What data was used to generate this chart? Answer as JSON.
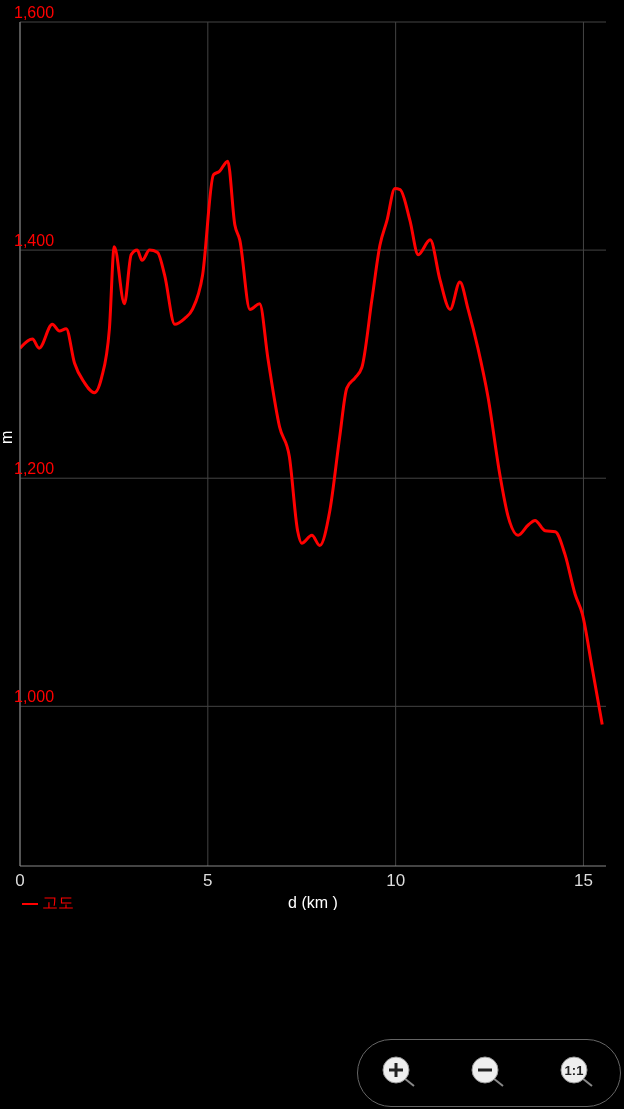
{
  "chart_data": {
    "type": "line",
    "xlabel": "d (km )",
    "ylabel": "m",
    "legend": "bottom left",
    "grid": true,
    "marker": "none",
    "line_style": "solid",
    "xlim": [
      0,
      15.6
    ],
    "xticks": [
      0,
      5,
      10,
      15
    ],
    "ylim": [
      860,
      1600
    ],
    "yticks": [
      {
        "value": 1000,
        "label": "1,000"
      },
      {
        "value": 1200,
        "label": "1,200"
      },
      {
        "value": 1400,
        "label": "1,400"
      },
      {
        "value": 1600,
        "label": "1,600"
      }
    ],
    "x": [
      0,
      0.33,
      0.51,
      0.86,
      1.05,
      1.23,
      1.45,
      1.71,
      1.98,
      2.17,
      2.38,
      2.51,
      2.78,
      2.96,
      3.12,
      3.25,
      3.45,
      3.66,
      3.85,
      4.12,
      4.38,
      4.59,
      4.86,
      5.15,
      5.31,
      5.53,
      5.72,
      5.85,
      6.12,
      6.38,
      6.6,
      6.91,
      7.17,
      7.39,
      7.5,
      7.77,
      7.98,
      8.25,
      8.51,
      8.7,
      8.92,
      9.1,
      9.37,
      9.58,
      9.77,
      9.98,
      10.12,
      10.38,
      10.6,
      10.92,
      11.18,
      11.45,
      11.71,
      11.93,
      12.19,
      12.46,
      12.78,
      12.99,
      13.26,
      13.53,
      13.71,
      13.98,
      14.25,
      14.51,
      14.78,
      14.97,
      15.23,
      15.5
    ],
    "series": [
      {
        "name": "고도",
        "color": "#ff0000",
        "values": [
          1314,
          1322,
          1314,
          1335,
          1329,
          1331,
          1301,
          1284,
          1275,
          1288,
          1331,
          1403,
          1353,
          1396,
          1400,
          1391,
          1400,
          1398,
          1378,
          1335,
          1340,
          1348,
          1378,
          1466,
          1469,
          1478,
          1422,
          1409,
          1348,
          1353,
          1305,
          1245,
          1219,
          1154,
          1143,
          1150,
          1141,
          1172,
          1236,
          1279,
          1288,
          1297,
          1357,
          1404,
          1426,
          1454,
          1453,
          1426,
          1396,
          1409,
          1374,
          1348,
          1372,
          1348,
          1314,
          1271,
          1202,
          1167,
          1150,
          1159,
          1163,
          1154,
          1153,
          1133,
          1098,
          1081,
          1034,
          984
        ]
      }
    ],
    "annotations": [
      "1:1"
    ]
  }
}
